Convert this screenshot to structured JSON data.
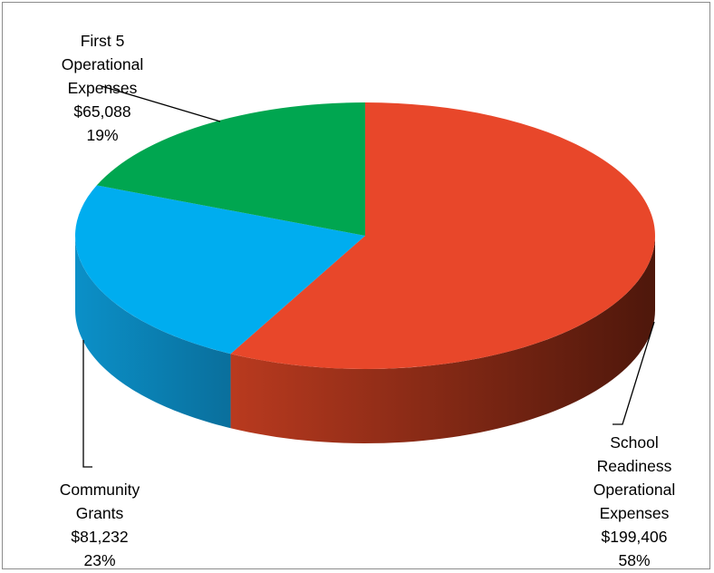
{
  "chart_data": {
    "type": "pie",
    "title": "",
    "slices": [
      {
        "name_lines": [
          "School",
          "Readiness",
          "Operational",
          "Expenses"
        ],
        "value": 199406,
        "value_label": "$199,406",
        "percent_label": "58%",
        "color": "#e8472a",
        "side_color": "#7a2412"
      },
      {
        "name_lines": [
          "Community",
          "Grants"
        ],
        "value": 81232,
        "value_label": "$81,232",
        "percent_label": "23%",
        "color": "#00adef",
        "side_color": "#0a82b5"
      },
      {
        "name_lines": [
          "First 5",
          "Operational",
          "Expenses"
        ],
        "value": 65088,
        "value_label": "$65,088",
        "percent_label": "19%",
        "color": "#00a650",
        "side_color": "#007a3a"
      }
    ],
    "legend": "none",
    "style": "3d-pie"
  }
}
